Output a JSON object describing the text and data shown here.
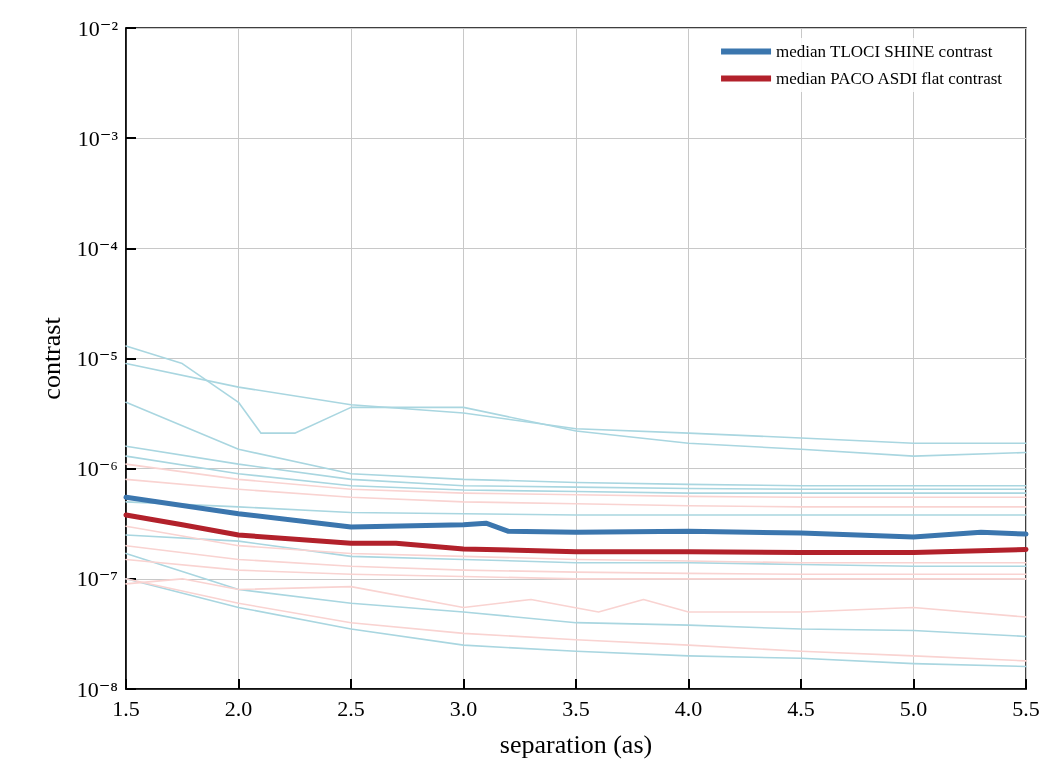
{
  "chart_data": {
    "type": "line",
    "xlabel": "separation (as)",
    "ylabel": "contrast",
    "log": "y",
    "grid": true,
    "legend": "top right",
    "marker": "none",
    "line_style": "solid",
    "xlim": [
      1.5,
      5.5
    ],
    "xticks": [
      1.5,
      {
        "value": 2,
        "label": "2.0"
      },
      2.5,
      {
        "value": 3,
        "label": "3.0"
      },
      3.5,
      {
        "value": 4,
        "label": "4.0"
      },
      4.5,
      {
        "value": 5,
        "label": "5.0"
      },
      5.5
    ],
    "ylim": [
      1e-08,
      0.01
    ],
    "yticks": [
      {
        "value": 1e-08,
        "label": "10⁻⁸"
      },
      {
        "value": 1e-07,
        "label": "10⁻⁷"
      },
      {
        "value": 1e-06,
        "label": "10⁻⁶"
      },
      {
        "value": 1e-05,
        "label": "10⁻⁵"
      },
      {
        "value": 0.0001,
        "label": "10⁻⁴"
      },
      {
        "value": 0.001,
        "label": "10⁻³"
      },
      {
        "value": 0.01,
        "label": "10⁻²"
      }
    ],
    "series": [
      {
        "color": "#a9d6e0",
        "x": [
          1.5,
          1.75,
          2.0,
          2.1,
          2.25,
          2.5,
          3.0,
          3.5,
          4.0,
          4.5,
          5.0,
          5.5
        ],
        "values": [
          1.3e-05,
          9e-06,
          4e-06,
          2.1e-06,
          2.1e-06,
          3.6e-06,
          3.6e-06,
          2.2e-06,
          1.7e-06,
          1.5e-06,
          1.3e-06,
          1.4e-06
        ]
      },
      {
        "color": "#a9d6e0",
        "x": [
          1.5,
          2.0,
          2.5,
          3.0,
          3.5,
          4.0,
          4.5,
          5.0,
          5.5
        ],
        "values": [
          9e-06,
          5.5e-06,
          3.8e-06,
          3.2e-06,
          2.3e-06,
          2.1e-06,
          1.9e-06,
          1.7e-06,
          1.7e-06
        ]
      },
      {
        "color": "#a9d6e0",
        "x": [
          1.5,
          2.0,
          2.5,
          3.0,
          3.5,
          4.0,
          4.5,
          5.0,
          5.5
        ],
        "values": [
          4e-06,
          1.5e-06,
          9e-07,
          8e-07,
          7.5e-07,
          7.2e-07,
          7e-07,
          7e-07,
          7e-07
        ]
      },
      {
        "color": "#a9d6e0",
        "x": [
          1.5,
          2.0,
          2.5,
          3.0,
          3.5,
          4.0,
          4.5,
          5.0,
          5.5
        ],
        "values": [
          1.6e-06,
          1.1e-06,
          8e-07,
          7e-07,
          6.8e-07,
          6.6e-07,
          6.5e-07,
          6.5e-07,
          6.5e-07
        ]
      },
      {
        "color": "#a9d6e0",
        "x": [
          1.5,
          2.0,
          2.5,
          3.0,
          3.5,
          4.0,
          4.5,
          5.0,
          5.5
        ],
        "values": [
          1.3e-06,
          9e-07,
          7e-07,
          6.4e-07,
          6.2e-07,
          6e-07,
          6e-07,
          6e-07,
          6e-07
        ]
      },
      {
        "color": "#a9d6e0",
        "x": [
          1.5,
          2.0,
          2.5,
          3.0,
          3.5,
          4.0,
          4.5,
          5.0,
          5.5
        ],
        "values": [
          5e-07,
          4.5e-07,
          4e-07,
          3.9e-07,
          3.8e-07,
          3.8e-07,
          3.8e-07,
          3.8e-07,
          3.8e-07
        ]
      },
      {
        "color": "#a9d6e0",
        "x": [
          1.5,
          2.0,
          2.5,
          3.0,
          3.5,
          4.0,
          4.5,
          5.0,
          5.5
        ],
        "values": [
          2.5e-07,
          2.2e-07,
          1.6e-07,
          1.5e-07,
          1.4e-07,
          1.4e-07,
          1.35e-07,
          1.3e-07,
          1.3e-07
        ]
      },
      {
        "color": "#a9d6e0",
        "x": [
          1.5,
          2.0,
          2.5,
          3.0,
          3.5,
          4.0,
          4.5,
          5.0,
          5.5
        ],
        "values": [
          1.7e-07,
          8e-08,
          6e-08,
          5e-08,
          4e-08,
          3.8e-08,
          3.5e-08,
          3.4e-08,
          3e-08
        ]
      },
      {
        "color": "#a9d6e0",
        "x": [
          1.5,
          2.0,
          2.5,
          3.0,
          3.5,
          4.0,
          4.5,
          5.0,
          5.5
        ],
        "values": [
          1e-07,
          5.5e-08,
          3.5e-08,
          2.5e-08,
          2.2e-08,
          2e-08,
          1.9e-08,
          1.7e-08,
          1.6e-08
        ]
      },
      {
        "color": "#f9d3d1",
        "x": [
          1.5,
          2.0,
          2.5,
          3.0,
          3.5,
          4.0,
          4.5,
          5.0,
          5.5
        ],
        "values": [
          1.1e-06,
          8e-07,
          6.5e-07,
          6e-07,
          5.8e-07,
          5.6e-07,
          5.5e-07,
          5.5e-07,
          5.5e-07
        ]
      },
      {
        "color": "#f9d3d1",
        "x": [
          1.5,
          2.0,
          2.5,
          3.0,
          3.5,
          4.0,
          4.5,
          5.0,
          5.5
        ],
        "values": [
          8e-07,
          6.5e-07,
          5.5e-07,
          5e-07,
          4.8e-07,
          4.6e-07,
          4.5e-07,
          4.5e-07,
          4.5e-07
        ]
      },
      {
        "color": "#f9d3d1",
        "x": [
          1.5,
          2.0,
          2.5,
          3.0,
          3.5,
          4.0,
          4.5,
          5.0,
          5.5
        ],
        "values": [
          3e-07,
          2e-07,
          1.7e-07,
          1.6e-07,
          1.5e-07,
          1.45e-07,
          1.4e-07,
          1.4e-07,
          1.4e-07
        ]
      },
      {
        "color": "#f9d3d1",
        "x": [
          1.5,
          2.0,
          2.5,
          3.0,
          3.5,
          4.0,
          4.5,
          5.0,
          5.5
        ],
        "values": [
          2e-07,
          1.5e-07,
          1.3e-07,
          1.2e-07,
          1.15e-07,
          1.12e-07,
          1.1e-07,
          1.1e-07,
          1.1e-07
        ]
      },
      {
        "color": "#f9d3d1",
        "x": [
          1.5,
          2.0,
          2.5,
          3.0,
          3.5,
          4.0,
          4.5,
          5.0,
          5.5
        ],
        "values": [
          1.5e-07,
          1.2e-07,
          1.1e-07,
          1.05e-07,
          1e-07,
          1e-07,
          1e-07,
          1e-07,
          1e-07
        ]
      },
      {
        "color": "#f9d3d1",
        "x": [
          1.5,
          1.75,
          2.0,
          2.5,
          3.0,
          3.3,
          3.6,
          3.8,
          4.0,
          4.5,
          5.0,
          5.5
        ],
        "values": [
          9e-08,
          1e-07,
          8e-08,
          8.5e-08,
          5.5e-08,
          6.5e-08,
          5e-08,
          6.5e-08,
          5e-08,
          5e-08,
          5.5e-08,
          4.5e-08
        ]
      },
      {
        "color": "#f9d3d1",
        "x": [
          1.5,
          2.0,
          2.5,
          3.0,
          3.5,
          4.0,
          4.5,
          5.0,
          5.5
        ],
        "values": [
          1e-07,
          6e-08,
          4e-08,
          3.2e-08,
          2.8e-08,
          2.5e-08,
          2.2e-08,
          2e-08,
          1.8e-08
        ]
      },
      {
        "name": "median TLOCI SHINE contrast",
        "color": "#3b76ae",
        "x": [
          1.5,
          2.0,
          2.5,
          3.0,
          3.1,
          3.2,
          3.5,
          4.0,
          4.5,
          5.0,
          5.3,
          5.5
        ],
        "values": [
          5.5e-07,
          3.9e-07,
          2.95e-07,
          3.1e-07,
          3.2e-07,
          2.7e-07,
          2.65e-07,
          2.7e-07,
          2.6e-07,
          2.4e-07,
          2.65e-07,
          2.55e-07
        ]
      },
      {
        "name": "median PACO ASDI flat contrast",
        "color": "#b2212b",
        "x": [
          1.5,
          1.75,
          2.0,
          2.5,
          2.7,
          3.0,
          3.5,
          4.0,
          4.5,
          5.0,
          5.5
        ],
        "values": [
          3.8e-07,
          3.1e-07,
          2.5e-07,
          2.1e-07,
          2.1e-07,
          1.87e-07,
          1.76e-07,
          1.76e-07,
          1.73e-07,
          1.73e-07,
          1.85e-07
        ]
      }
    ]
  }
}
